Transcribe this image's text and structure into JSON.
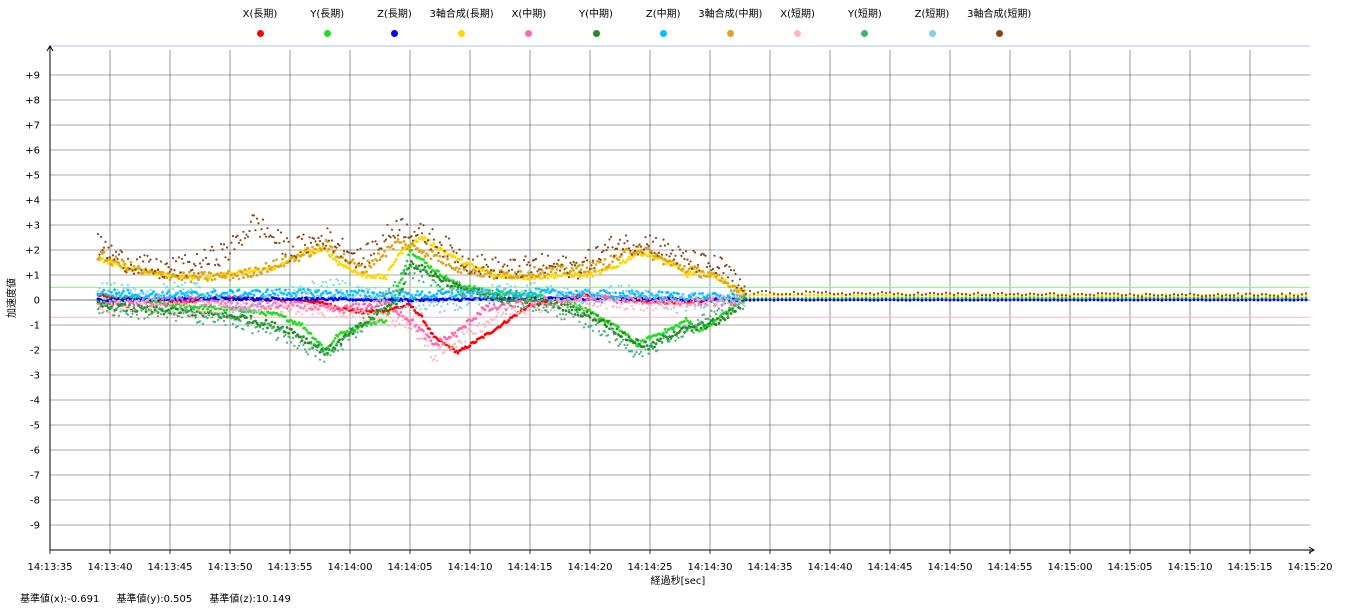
{
  "chart_data": {
    "type": "scatter",
    "title": "",
    "xlabel": "経過秒[sec]",
    "ylabel": "加速度値",
    "ylim": [
      -10,
      10
    ],
    "yticks": [
      "+9",
      "+8",
      "+7",
      "+6",
      "+5",
      "+4",
      "+3",
      "+2",
      "+1",
      "0",
      "-1",
      "-2",
      "-3",
      "-4",
      "-5",
      "-6",
      "-7",
      "-8",
      "-9"
    ],
    "xlim": [
      "14:13:35",
      "14:15:20"
    ],
    "xticks": [
      "14:13:35",
      "14:13:40",
      "14:13:45",
      "14:13:50",
      "14:13:55",
      "14:14:00",
      "14:14:05",
      "14:14:10",
      "14:14:15",
      "14:14:20",
      "14:14:25",
      "14:14:30",
      "14:14:35",
      "14:14:40",
      "14:14:45",
      "14:14:50",
      "14:14:55",
      "14:15:00",
      "14:15:05",
      "14:15:10",
      "14:15:15",
      "14:15:20"
    ],
    "grid": true,
    "legend_position": "top",
    "reference_lines": [
      {
        "axis": "x",
        "value": -0.691,
        "color": "#ffb6c1"
      },
      {
        "axis": "y",
        "value": 0.505,
        "color": "#90ee90"
      }
    ],
    "series": [
      {
        "name": "X(長期)",
        "color": "#ff0000",
        "t": [
          4,
          5,
          7,
          10,
          14,
          18,
          21,
          23,
          24,
          26,
          28,
          29,
          30,
          31,
          32,
          34,
          37,
          40,
          43,
          45,
          48,
          52,
          55,
          58,
          70,
          105
        ],
        "y": [
          0.2,
          0.1,
          0,
          -0.1,
          0.1,
          0,
          0,
          -0.15,
          -0.3,
          -0.5,
          -0.4,
          -0.3,
          -0.2,
          -0.7,
          -1.5,
          -2.1,
          -1.2,
          -0.2,
          0.1,
          0.2,
          0,
          -0.1,
          0,
          0.05,
          0.05,
          0.05
        ]
      },
      {
        "name": "Y(長期)",
        "color": "#22dd22",
        "t": [
          4,
          5,
          7,
          10,
          13,
          16,
          19,
          21,
          23,
          24,
          26,
          28,
          29,
          30,
          31,
          32,
          34,
          37,
          40,
          43,
          45,
          47,
          49,
          50,
          52,
          53,
          54,
          55,
          56,
          58,
          70,
          105
        ],
        "y": [
          -0.1,
          0,
          0.05,
          -0.2,
          -0.3,
          -0.4,
          -0.6,
          -1.0,
          -2.0,
          -1.4,
          -1.0,
          -0.8,
          0.5,
          2.0,
          1.6,
          1.2,
          0.6,
          0.3,
          0.2,
          0,
          -0.5,
          -1.0,
          -1.8,
          -1.5,
          -1.1,
          -0.8,
          -1.2,
          -1.0,
          -0.6,
          0.05,
          0.08,
          0.08
        ]
      },
      {
        "name": "Z(長期)",
        "color": "#0000ff",
        "t": [
          4,
          10,
          20,
          30,
          40,
          50,
          58,
          105
        ],
        "y": [
          0,
          0.05,
          0.05,
          0,
          0.05,
          0.05,
          0,
          0
        ]
      },
      {
        "name": "3軸合成(長期)",
        "color": "#ffd700",
        "t": [
          4,
          5,
          7,
          10,
          13,
          16,
          19,
          21,
          23,
          24,
          26,
          28,
          29,
          30,
          31,
          32,
          34,
          37,
          40,
          43,
          45,
          47,
          49,
          50,
          52,
          53,
          54,
          55,
          56,
          58,
          70,
          105
        ],
        "y": [
          1.7,
          1.5,
          1.2,
          1.0,
          0.9,
          1.1,
          1.3,
          1.9,
          2.0,
          1.5,
          1.0,
          0.9,
          1.8,
          2.2,
          2.5,
          2.2,
          1.6,
          1.0,
          0.9,
          1.0,
          1.0,
          1.3,
          1.9,
          1.8,
          1.4,
          1.0,
          1.1,
          1.0,
          0.8,
          0.2,
          0.2,
          0.2
        ]
      },
      {
        "name": "X(中期)",
        "color": "#ff69b4",
        "t": [
          4,
          8,
          12,
          16,
          20,
          24,
          28,
          30,
          32,
          34,
          36,
          40,
          45,
          50,
          55,
          58
        ],
        "y": [
          -0.2,
          -0.1,
          0,
          -0.3,
          -0.2,
          -0.4,
          -0.1,
          -0.8,
          -1.8,
          -1.3,
          -0.4,
          -0.1,
          0.05,
          0,
          -0.1,
          0
        ]
      },
      {
        "name": "Y(中期)",
        "color": "#228b22",
        "t": [
          4,
          8,
          12,
          16,
          20,
          23,
          26,
          29,
          30,
          32,
          34,
          37,
          40,
          43,
          46,
          48,
          50,
          52,
          54,
          56,
          58
        ],
        "y": [
          -0.2,
          -0.4,
          -0.5,
          -0.7,
          -1.2,
          -2.1,
          -1.0,
          0,
          1.5,
          1.0,
          0.5,
          0.1,
          0,
          -0.3,
          -0.8,
          -1.5,
          -1.9,
          -1.3,
          -1.1,
          -0.8,
          0
        ]
      },
      {
        "name": "Z(中期)",
        "color": "#00bfff",
        "t": [
          4,
          10,
          20,
          30,
          40,
          50,
          58
        ],
        "y": [
          0.3,
          0.2,
          0.3,
          0.2,
          0.3,
          0.2,
          0.1
        ]
      },
      {
        "name": "3軸合成(中期)",
        "color": "#daa520",
        "t": [
          4,
          8,
          12,
          16,
          20,
          23,
          26,
          29,
          31,
          34,
          37,
          40,
          43,
          46,
          49,
          52,
          55,
          58
        ],
        "y": [
          1.8,
          1.1,
          0.9,
          1.0,
          1.6,
          2.2,
          1.2,
          2.3,
          2.0,
          1.3,
          1.0,
          1.1,
          1.2,
          1.4,
          2.1,
          1.4,
          1.0,
          0.25
        ]
      },
      {
        "name": "X(短期)",
        "color": "#ffb6c1",
        "t": [
          4,
          8,
          12,
          16,
          20,
          24,
          30,
          32,
          34,
          38,
          42,
          46,
          50,
          54,
          58
        ],
        "y": [
          -0.3,
          -0.2,
          -0.4,
          -0.2,
          -0.3,
          -0.5,
          -0.9,
          -2.3,
          -1.6,
          -0.4,
          -0.2,
          -0.1,
          -0.2,
          -0.1,
          0
        ]
      },
      {
        "name": "Y(短期)",
        "color": "#3cb371",
        "t": [
          4,
          8,
          12,
          16,
          20,
          23,
          26,
          30,
          33,
          37,
          41,
          45,
          49,
          53,
          58
        ],
        "y": [
          -0.3,
          -0.5,
          -0.6,
          -0.9,
          -1.5,
          -2.3,
          -1.0,
          1.2,
          0.6,
          0.1,
          -0.2,
          -0.9,
          -2.1,
          -1.2,
          0
        ]
      },
      {
        "name": "Z(短期)",
        "color": "#87ceeb",
        "t": [
          4,
          8,
          12,
          16,
          20,
          24,
          28,
          32,
          36,
          40,
          44,
          48,
          52,
          56,
          58
        ],
        "y": [
          0.4,
          0.2,
          0.5,
          -0.4,
          0.3,
          0.5,
          0.1,
          -0.3,
          0.2,
          0.4,
          0.1,
          0.3,
          -0.2,
          0.2,
          0
        ]
      },
      {
        "name": "3軸合成(短期)",
        "color": "#8b4513",
        "t": [
          4,
          6,
          9,
          12,
          15,
          17,
          20,
          23,
          26,
          29,
          32,
          35,
          38,
          41,
          44,
          47,
          50,
          53,
          56,
          58,
          70,
          90,
          105
        ],
        "y": [
          2.2,
          1.6,
          1.2,
          1.4,
          2.0,
          3.1,
          2.0,
          2.5,
          1.6,
          3.0,
          2.4,
          1.5,
          1.2,
          1.4,
          1.3,
          2.2,
          2.3,
          1.6,
          1.3,
          0.3,
          0.25,
          0.2,
          0.2
        ]
      }
    ]
  },
  "footer": {
    "base_x": "基準値(x):-0.691",
    "base_y": "基準値(y):0.505",
    "base_z": "基準値(z):10.149"
  }
}
